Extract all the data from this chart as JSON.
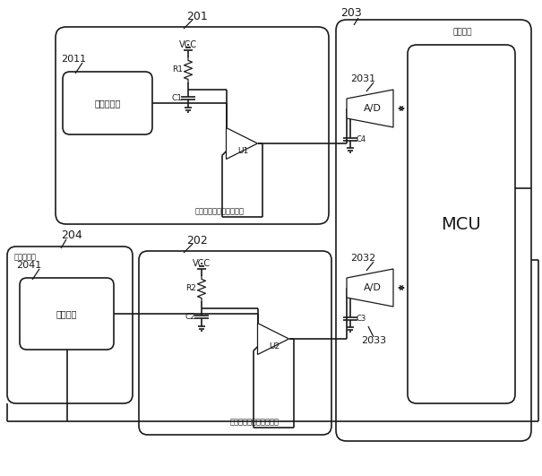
{
  "bg_color": "#ffffff",
  "line_color": "#1a1a1a",
  "labels": {
    "201": "201",
    "202": "202",
    "203": "203",
    "204": "204",
    "2011": "2011",
    "2031": "2031",
    "2032": "2032",
    "2033": "2033",
    "2041": "2041",
    "VCC": "VCC",
    "R1": "R1",
    "R2": "R2",
    "C1": "C1",
    "C2": "C2",
    "C3": "C3",
    "C4": "C4",
    "U1": "U1",
    "U2": "U2",
    "MCU": "MCU",
    "AD": "A/D",
    "module1": "笼仓内环境温度采集模块",
    "module2": "热敏头本体温度采集模块",
    "module3": "主控模块",
    "sensor_label": "温度传感器",
    "head_module": "热敏头模块",
    "thermistor": "热敏电阵"
  },
  "lw_main": 1.2,
  "lw_thin": 0.9
}
